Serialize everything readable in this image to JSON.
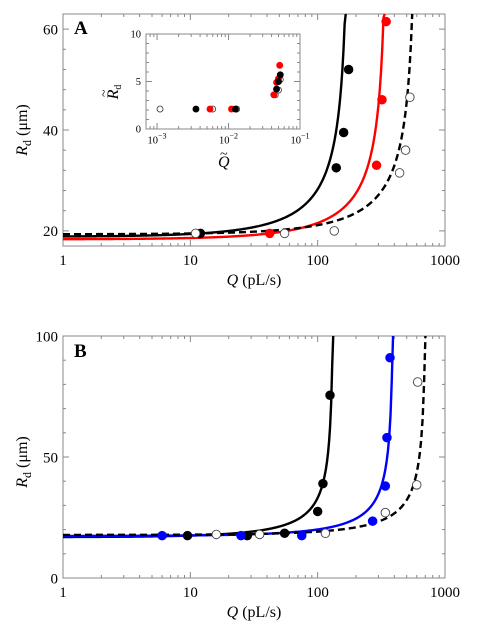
{
  "chart_data": [
    {
      "type": "scatter",
      "panel_label": "A",
      "xlabel": {
        "var": "Q",
        "unit": " (pL/s)"
      },
      "ylabel": {
        "var": "R",
        "sub": "d",
        "unit": " (μm)"
      },
      "x_scale": "log",
      "xlim": [
        1,
        1000
      ],
      "ylim": [
        17,
        63
      ],
      "x_ticks": [
        1,
        10,
        100,
        1000
      ],
      "x_tick_labels": [
        "1",
        "10",
        "100",
        "1000"
      ],
      "y_ticks": [
        20,
        40,
        60
      ],
      "y_tick_labels": [
        "20",
        "40",
        "60"
      ],
      "grid": false,
      "series": [
        {
          "style": "filled",
          "color": "#000000",
          "points": [
            [
              12,
              19.5
            ],
            [
              140,
              32.5
            ],
            [
              160,
              39.5
            ],
            [
              175,
              52
            ]
          ],
          "curve": {
            "asymptote": 180,
            "dash": false
          }
        },
        {
          "style": "filled",
          "color": "#ff0000",
          "points": [
            [
              42,
              19.5
            ],
            [
              290,
              33
            ],
            [
              320,
              46
            ],
            [
              345,
              61.5
            ]
          ],
          "curve": {
            "asymptote": 360,
            "dash": false
          }
        },
        {
          "style": "open",
          "color": "#000000",
          "points": [
            [
              11,
              19.5
            ],
            [
              55,
              19.5
            ],
            [
              135,
              20
            ],
            [
              440,
              31.5
            ],
            [
              490,
              36
            ],
            [
              530,
              46.5
            ]
          ],
          "curve": {
            "asymptote": 610,
            "dash": true
          }
        }
      ],
      "inset": {
        "xlabel": {
          "var": "Q",
          "tilde": "~"
        },
        "ylabel": {
          "var": "R",
          "sub": "d",
          "tilde": "~"
        },
        "x_scale": "log",
        "xlim": [
          0.0007,
          0.1
        ],
        "ylim": [
          0,
          10
        ],
        "x_ticks": [
          0.001,
          0.01,
          0.1
        ],
        "x_tick_labels": [
          "10",
          "10",
          "10"
        ],
        "x_tick_exps": [
          "−3",
          "−2",
          "−1"
        ],
        "y_ticks": [
          0,
          5,
          10
        ],
        "y_tick_labels": [
          "0",
          "5",
          "10"
        ],
        "series": [
          {
            "style": "open",
            "color": "#000000",
            "points": [
              [
                0.0011,
                2.1
              ],
              [
                0.006,
                2.1
              ],
              [
                0.013,
                2.1
              ],
              [
                0.045,
                3.6
              ],
              [
                0.05,
                4.1
              ],
              [
                0.053,
                5.2
              ]
            ]
          },
          {
            "style": "filled",
            "color": "#ff0000",
            "points": [
              [
                0.0055,
                2.1
              ],
              [
                0.011,
                2.1
              ],
              [
                0.043,
                3.6
              ],
              [
                0.047,
                4.9
              ],
              [
                0.05,
                5.3
              ],
              [
                0.052,
                6.7
              ]
            ]
          },
          {
            "style": "filled",
            "color": "#000000",
            "points": [
              [
                0.0035,
                2.1
              ],
              [
                0.0125,
                2.1
              ],
              [
                0.047,
                4.2
              ],
              [
                0.05,
                5.0
              ],
              [
                0.053,
                5.7
              ]
            ]
          }
        ]
      }
    },
    {
      "type": "scatter",
      "panel_label": "B",
      "xlabel": {
        "var": "Q",
        "unit": " (pL/s)"
      },
      "ylabel": {
        "var": "R",
        "sub": "d",
        "unit": " (μm)"
      },
      "x_scale": "log",
      "xlim": [
        1,
        1000
      ],
      "ylim": [
        0,
        100
      ],
      "x_ticks": [
        1,
        10,
        100,
        1000
      ],
      "x_tick_labels": [
        "1",
        "10",
        "100",
        "1000"
      ],
      "y_ticks": [
        0,
        50,
        100
      ],
      "y_tick_labels": [
        "0",
        "50",
        "100"
      ],
      "grid": false,
      "series": [
        {
          "style": "filled",
          "color": "#000000",
          "points": [
            [
              9.5,
              17.5
            ],
            [
              28,
              17.5
            ],
            [
              55,
              18.5
            ],
            [
              100,
              27.5
            ],
            [
              110,
              39
            ],
            [
              125,
              75.5
            ]
          ],
          "curve": {
            "asymptote": 135,
            "dash": false
          }
        },
        {
          "style": "filled",
          "color": "#0000ff",
          "points": [
            [
              6,
              17.5
            ],
            [
              25,
              17.5
            ],
            [
              75,
              17.5
            ],
            [
              270,
              23.5
            ],
            [
              340,
              38
            ],
            [
              350,
              58
            ],
            [
              370,
              91
            ]
          ],
          "curve": {
            "asymptote": 400,
            "dash": false
          }
        },
        {
          "style": "open",
          "color": "#000000",
          "points": [
            [
              16,
              18
            ],
            [
              35,
              18
            ],
            [
              115,
              18.5
            ],
            [
              340,
              27
            ],
            [
              600,
              38.5
            ],
            [
              610,
              81
            ]
          ],
          "curve": {
            "asymptote": 720,
            "dash": true
          }
        }
      ]
    }
  ]
}
